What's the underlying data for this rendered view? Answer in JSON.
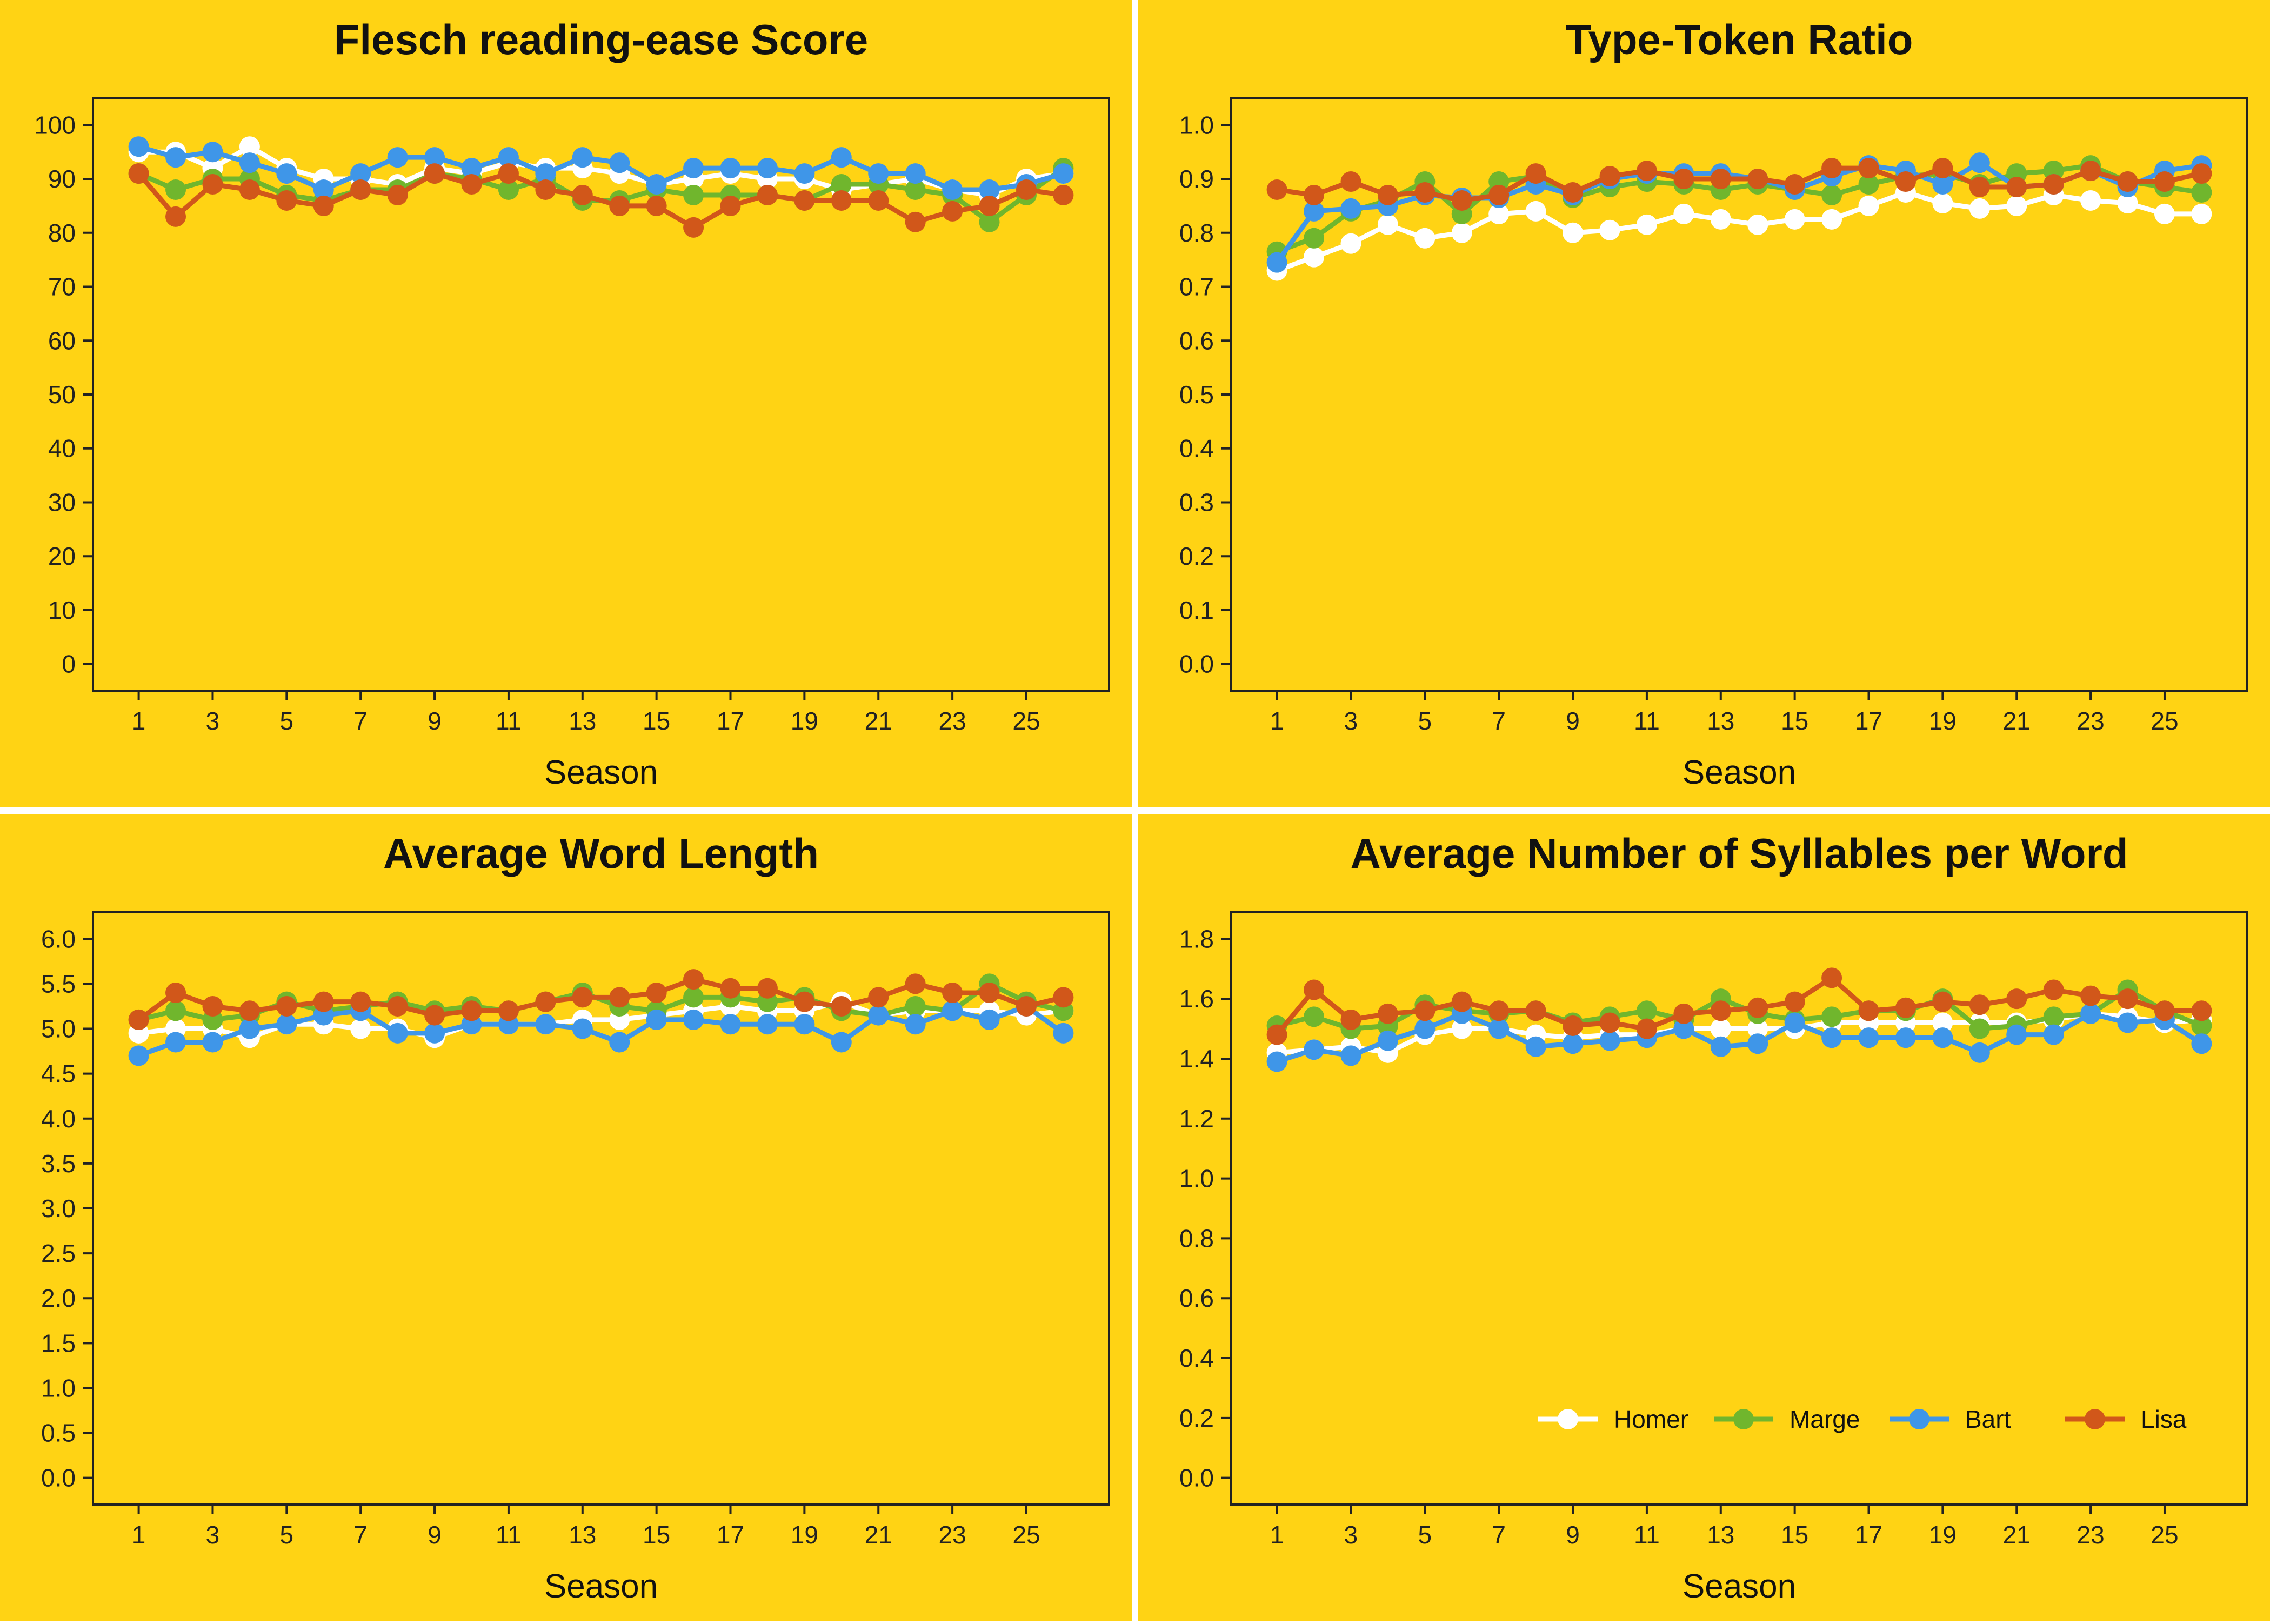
{
  "colors": {
    "background": "#FFD314",
    "Homer": "#FFFFFF",
    "Marge": "#70B62D",
    "Bart": "#3F96E8",
    "Lisa": "#D1571A",
    "axis": "#222222"
  },
  "legend": {
    "placement": "bottom-right",
    "panel_index": 3
  },
  "chart_data": [
    {
      "type": "line",
      "title": "Flesch reading-ease Score",
      "xlabel": "Season",
      "ylabel": "",
      "xlim": [
        1,
        26
      ],
      "ylim": [
        0,
        100
      ],
      "xticks": [
        1,
        3,
        5,
        7,
        9,
        11,
        13,
        15,
        17,
        19,
        21,
        23,
        25
      ],
      "yticks": [
        "0",
        "10",
        "20",
        "30",
        "40",
        "50",
        "60",
        "70",
        "80",
        "90",
        "100"
      ],
      "x": [
        1,
        2,
        3,
        4,
        5,
        6,
        7,
        8,
        9,
        10,
        11,
        12,
        13,
        14,
        15,
        16,
        17,
        18,
        19,
        20,
        21,
        22,
        23,
        24,
        25,
        26
      ],
      "series": [
        {
          "name": "Homer",
          "values": [
            95,
            95,
            92,
            96,
            92,
            90,
            90,
            89,
            92,
            91,
            93,
            92,
            92,
            91,
            89,
            90,
            91,
            90,
            90,
            88,
            89,
            90,
            88,
            87,
            90,
            91
          ]
        },
        {
          "name": "Marge",
          "values": [
            91,
            88,
            90,
            90,
            87,
            86,
            88,
            88,
            91,
            90,
            88,
            90,
            86,
            86,
            88,
            87,
            87,
            87,
            86,
            89,
            89,
            88,
            87,
            82,
            87,
            92
          ]
        },
        {
          "name": "Bart",
          "values": [
            96,
            94,
            95,
            93,
            91,
            88,
            91,
            94,
            94,
            92,
            94,
            91,
            94,
            93,
            89,
            92,
            92,
            92,
            91,
            94,
            91,
            91,
            88,
            88,
            89,
            91
          ]
        },
        {
          "name": "Lisa",
          "values": [
            91,
            83,
            89,
            88,
            86,
            85,
            88,
            87,
            91,
            89,
            91,
            88,
            87,
            85,
            85,
            81,
            85,
            87,
            86,
            86,
            86,
            82,
            84,
            85,
            88,
            87
          ]
        }
      ]
    },
    {
      "type": "line",
      "title": "Type-Token Ratio",
      "xlabel": "Season",
      "ylabel": "",
      "xlim": [
        1,
        26
      ],
      "ylim": [
        0,
        1
      ],
      "xticks": [
        1,
        3,
        5,
        7,
        9,
        11,
        13,
        15,
        17,
        19,
        21,
        23,
        25
      ],
      "yticks": [
        "0.0",
        "0.1",
        "0.2",
        "0.3",
        "0.4",
        "0.5",
        "0.6",
        "0.7",
        "0.8",
        "0.9",
        "1.0"
      ],
      "x": [
        1,
        2,
        3,
        4,
        5,
        6,
        7,
        8,
        9,
        10,
        11,
        12,
        13,
        14,
        15,
        16,
        17,
        18,
        19,
        20,
        21,
        22,
        23,
        24,
        25,
        26
      ],
      "series": [
        {
          "name": "Homer",
          "values": [
            0.73,
            0.755,
            0.78,
            0.815,
            0.79,
            0.8,
            0.835,
            0.84,
            0.8,
            0.805,
            0.815,
            0.835,
            0.825,
            0.815,
            0.825,
            0.825,
            0.85,
            0.875,
            0.855,
            0.845,
            0.85,
            0.87,
            0.86,
            0.855,
            0.835,
            0.835
          ]
        },
        {
          "name": "Marge",
          "values": [
            0.765,
            0.79,
            0.84,
            0.86,
            0.895,
            0.835,
            0.895,
            0.905,
            0.865,
            0.885,
            0.895,
            0.89,
            0.88,
            0.89,
            0.88,
            0.87,
            0.89,
            0.905,
            0.91,
            0.89,
            0.91,
            0.915,
            0.925,
            0.895,
            0.885,
            0.875
          ]
        },
        {
          "name": "Bart",
          "values": [
            0.745,
            0.84,
            0.845,
            0.85,
            0.87,
            0.865,
            0.865,
            0.89,
            0.87,
            0.9,
            0.91,
            0.91,
            0.91,
            0.9,
            0.88,
            0.905,
            0.925,
            0.915,
            0.89,
            0.93,
            0.885,
            0.89,
            0.915,
            0.885,
            0.915,
            0.925
          ]
        },
        {
          "name": "Lisa",
          "values": [
            0.88,
            0.87,
            0.895,
            0.87,
            0.875,
            0.86,
            0.87,
            0.91,
            0.875,
            0.905,
            0.915,
            0.9,
            0.9,
            0.9,
            0.89,
            0.92,
            0.92,
            0.895,
            0.92,
            0.885,
            0.885,
            0.89,
            0.915,
            0.895,
            0.895,
            0.91
          ]
        }
      ]
    },
    {
      "type": "line",
      "title": "Average Word Length",
      "xlabel": "Season",
      "ylabel": "",
      "xlim": [
        1,
        26
      ],
      "ylim": [
        0,
        6
      ],
      "xticks": [
        1,
        3,
        5,
        7,
        9,
        11,
        13,
        15,
        17,
        19,
        21,
        23,
        25
      ],
      "yticks": [
        "0.0",
        "0.5",
        "1.0",
        "1.5",
        "2.0",
        "2.5",
        "3.0",
        "3.5",
        "4.0",
        "4.5",
        "5.0",
        "5.5",
        "6.0"
      ],
      "x": [
        1,
        2,
        3,
        4,
        5,
        6,
        7,
        8,
        9,
        10,
        11,
        12,
        13,
        14,
        15,
        16,
        17,
        18,
        19,
        20,
        21,
        22,
        23,
        24,
        25,
        26
      ],
      "series": [
        {
          "name": "Homer",
          "values": [
            4.95,
            5.0,
            5.0,
            4.9,
            5.05,
            5.05,
            5.0,
            5.0,
            4.9,
            5.05,
            5.05,
            5.05,
            5.1,
            5.1,
            5.15,
            5.2,
            5.25,
            5.2,
            5.2,
            5.3,
            5.15,
            5.2,
            5.2,
            5.2,
            5.15,
            5.2
          ]
        },
        {
          "name": "Marge",
          "values": [
            5.1,
            5.2,
            5.1,
            5.15,
            5.3,
            5.2,
            5.25,
            5.3,
            5.2,
            5.25,
            5.2,
            5.3,
            5.4,
            5.25,
            5.2,
            5.35,
            5.35,
            5.3,
            5.35,
            5.2,
            5.15,
            5.25,
            5.2,
            5.5,
            5.3,
            5.2
          ]
        },
        {
          "name": "Bart",
          "values": [
            4.7,
            4.85,
            4.85,
            5.0,
            5.05,
            5.15,
            5.2,
            4.95,
            4.95,
            5.05,
            5.05,
            5.05,
            5.0,
            4.85,
            5.1,
            5.1,
            5.05,
            5.05,
            5.05,
            4.85,
            5.15,
            5.05,
            5.2,
            5.1,
            5.25,
            4.95
          ]
        },
        {
          "name": "Lisa",
          "values": [
            5.1,
            5.4,
            5.25,
            5.2,
            5.25,
            5.3,
            5.3,
            5.25,
            5.15,
            5.2,
            5.2,
            5.3,
            5.35,
            5.35,
            5.4,
            5.55,
            5.45,
            5.45,
            5.3,
            5.25,
            5.35,
            5.5,
            5.4,
            5.4,
            5.25,
            5.35
          ]
        }
      ]
    },
    {
      "type": "line",
      "title": "Average Number of Syllables per Word",
      "xlabel": "Season",
      "ylabel": "",
      "xlim": [
        1,
        26
      ],
      "ylim": [
        0,
        1.8
      ],
      "xticks": [
        1,
        3,
        5,
        7,
        9,
        11,
        13,
        15,
        17,
        19,
        21,
        23,
        25
      ],
      "yticks": [
        "0.0",
        "0.2",
        "0.4",
        "0.6",
        "0.8",
        "1.0",
        "1.2",
        "1.4",
        "1.6",
        "1.8"
      ],
      "legend_position": "bottom-right",
      "x": [
        1,
        2,
        3,
        4,
        5,
        6,
        7,
        8,
        9,
        10,
        11,
        12,
        13,
        14,
        15,
        16,
        17,
        18,
        19,
        20,
        21,
        22,
        23,
        24,
        25,
        26
      ],
      "series": [
        {
          "name": "Homer",
          "values": [
            1.42,
            1.43,
            1.44,
            1.42,
            1.48,
            1.5,
            1.5,
            1.48,
            1.47,
            1.48,
            1.48,
            1.5,
            1.5,
            1.5,
            1.5,
            1.52,
            1.52,
            1.52,
            1.52,
            1.52,
            1.52,
            1.53,
            1.55,
            1.54,
            1.52,
            1.53
          ]
        },
        {
          "name": "Marge",
          "values": [
            1.51,
            1.54,
            1.5,
            1.51,
            1.58,
            1.56,
            1.55,
            1.56,
            1.52,
            1.54,
            1.56,
            1.53,
            1.6,
            1.55,
            1.53,
            1.54,
            1.56,
            1.56,
            1.6,
            1.5,
            1.51,
            1.54,
            1.55,
            1.63,
            1.56,
            1.51
          ]
        },
        {
          "name": "Bart",
          "values": [
            1.39,
            1.43,
            1.41,
            1.46,
            1.5,
            1.55,
            1.5,
            1.44,
            1.45,
            1.46,
            1.47,
            1.5,
            1.44,
            1.45,
            1.52,
            1.47,
            1.47,
            1.47,
            1.47,
            1.42,
            1.48,
            1.48,
            1.55,
            1.52,
            1.53,
            1.45
          ]
        },
        {
          "name": "Lisa",
          "values": [
            1.48,
            1.63,
            1.53,
            1.55,
            1.56,
            1.59,
            1.56,
            1.56,
            1.51,
            1.52,
            1.5,
            1.55,
            1.56,
            1.57,
            1.59,
            1.67,
            1.56,
            1.57,
            1.59,
            1.58,
            1.6,
            1.63,
            1.61,
            1.6,
            1.56,
            1.56
          ]
        }
      ]
    }
  ]
}
